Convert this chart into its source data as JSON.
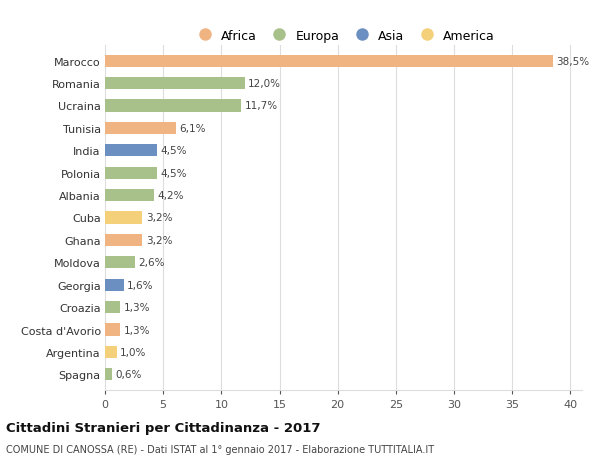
{
  "countries": [
    "Marocco",
    "Romania",
    "Ucraina",
    "Tunisia",
    "India",
    "Polonia",
    "Albania",
    "Cuba",
    "Ghana",
    "Moldova",
    "Georgia",
    "Croazia",
    "Costa d'Avorio",
    "Argentina",
    "Spagna"
  ],
  "values": [
    38.5,
    12.0,
    11.7,
    6.1,
    4.5,
    4.5,
    4.2,
    3.2,
    3.2,
    2.6,
    1.6,
    1.3,
    1.3,
    1.0,
    0.6
  ],
  "labels": [
    "38,5%",
    "12,0%",
    "11,7%",
    "6,1%",
    "4,5%",
    "4,5%",
    "4,2%",
    "3,2%",
    "3,2%",
    "2,6%",
    "1,6%",
    "1,3%",
    "1,3%",
    "1,0%",
    "0,6%"
  ],
  "colors": [
    "#F0B482",
    "#A8C08A",
    "#A8C08A",
    "#F0B482",
    "#6A8FC0",
    "#A8C08A",
    "#A8C08A",
    "#F5D07A",
    "#F0B482",
    "#A8C08A",
    "#6A8FC0",
    "#A8C08A",
    "#F0B482",
    "#F5D07A",
    "#A8C08A"
  ],
  "continents": [
    "Africa",
    "Europa",
    "Asia",
    "America"
  ],
  "legend_colors": [
    "#F0B482",
    "#A8C08A",
    "#6A8FC0",
    "#F5D07A"
  ],
  "title": "Cittadini Stranieri per Cittadinanza - 2017",
  "subtitle": "COMUNE DI CANOSSA (RE) - Dati ISTAT al 1° gennaio 2017 - Elaborazione TUTTITALIA.IT",
  "xlim": [
    0,
    41
  ],
  "xticks": [
    0,
    5,
    10,
    15,
    20,
    25,
    30,
    35,
    40
  ],
  "background_color": "#ffffff",
  "grid_color": "#dddddd"
}
